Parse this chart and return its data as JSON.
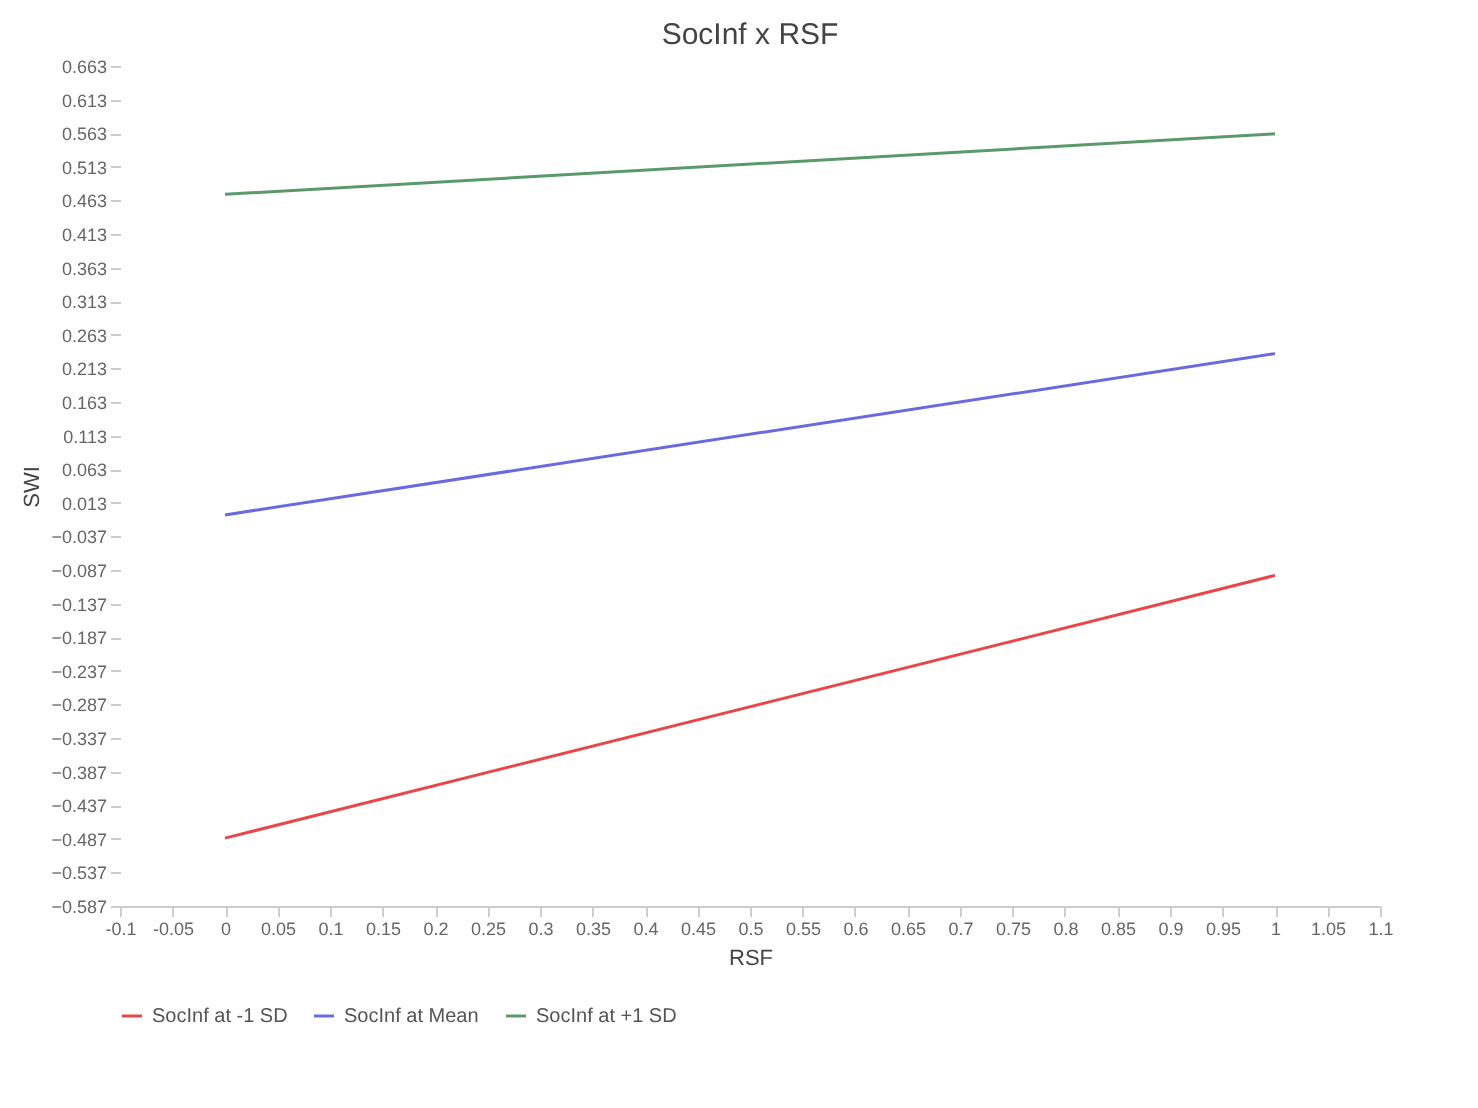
{
  "chart_data": {
    "type": "line",
    "title": "SocInf x RSF",
    "xlabel": "RSF",
    "ylabel": "SWI",
    "x": [
      0,
      1
    ],
    "series": [
      {
        "name": "SocInf at -1 SD",
        "color": "#e8474a",
        "values": [
          -0.486,
          -0.095
        ]
      },
      {
        "name": "SocInf at Mean",
        "color": "#6a6ae0",
        "values": [
          -0.005,
          0.235
        ]
      },
      {
        "name": "SocInf at +1 SD",
        "color": "#5a9a6a",
        "values": [
          0.472,
          0.562
        ]
      }
    ],
    "xlim": [
      -0.1,
      1.1
    ],
    "xticks": [
      -0.1,
      -0.05,
      0,
      0.05,
      0.1,
      0.15,
      0.2,
      0.25,
      0.3,
      0.35,
      0.4,
      0.45,
      0.5,
      0.55,
      0.6,
      0.65,
      0.7,
      0.75,
      0.8,
      0.85,
      0.9,
      0.95,
      1,
      1.05,
      1.1
    ],
    "ylim": [
      -0.587,
      0.663
    ],
    "yticks": [
      -0.587,
      -0.537,
      -0.487,
      -0.437,
      -0.387,
      -0.337,
      -0.287,
      -0.237,
      -0.187,
      -0.137,
      -0.087,
      -0.037,
      0.013,
      0.063,
      0.113,
      0.163,
      0.213,
      0.263,
      0.313,
      0.363,
      0.413,
      0.463,
      0.513,
      0.563,
      0.613,
      0.663
    ],
    "grid": false,
    "legend": "bottom",
    "marker": "none",
    "line_style": "solid"
  }
}
